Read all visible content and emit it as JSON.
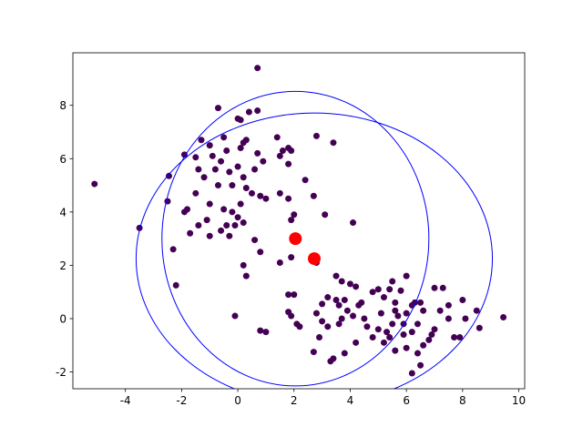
{
  "chart_data": {
    "type": "scatter",
    "xlim": [
      -5.87,
      10.21
    ],
    "ylim": [
      -2.63,
      9.97
    ],
    "xticks": [
      -4,
      -2,
      0,
      2,
      4,
      6,
      8,
      10
    ],
    "yticks": [
      -2,
      0,
      2,
      4,
      6,
      8
    ],
    "points": {
      "color": "#440154",
      "x": [
        -5.1,
        -3.5,
        -2.45,
        -2.5,
        -2.3,
        -2.2,
        -1.9,
        -1.8,
        -1.9,
        -1.7,
        -1.5,
        -1.4,
        -1.3,
        -1.2,
        -1.5,
        -1.4,
        -1.1,
        -1,
        -0.9,
        -0.8,
        -0.7,
        -0.6,
        -0.7,
        -0.5,
        -0.4,
        -0.3,
        -0.5,
        -0.4,
        -0.3,
        -0.6,
        -1.0,
        -0.2,
        0,
        0.1,
        0.2,
        0.3,
        0.1,
        0.0,
        0.2,
        -0.1,
        0.0,
        0.1,
        0.3,
        0.4,
        0.7,
        0.7,
        0.6,
        0.5,
        0.8,
        0.7,
        0.9,
        0.2,
        -0.2,
        -1.0,
        0.2,
        0.3,
        0.6,
        0.8,
        1.0,
        1.4,
        1.5,
        1.6,
        1.8,
        1.9,
        1.8,
        1.5,
        1.8,
        2.4,
        2.8,
        3.4,
        2.7,
        1.9,
        2.0,
        3.1,
        4.1,
        1.5,
        1.9,
        1.8,
        2.0,
        1.8,
        1.9,
        2.1,
        2.2,
        0.8,
        1.0,
        -0.1,
        2.8,
        3.5,
        3.7,
        4.0,
        3.2,
        3.5,
        3.6,
        3.8,
        4.2,
        3.0,
        2.8,
        3.0,
        3.2,
        3.6,
        3.7,
        3.9,
        4.1,
        4.3,
        4.5,
        4.8,
        5.0,
        5.2,
        5.4,
        5.6,
        5.8,
        6.0,
        5.5,
        5.6,
        5.7,
        5.9,
        6.0,
        6.2,
        6.3,
        6.5,
        6.6,
        6.4,
        6.2,
        5.9,
        5.5,
        5.3,
        5.2,
        5.4,
        5.0,
        4.8,
        4.6,
        4.2,
        3.8,
        3.4,
        3.3,
        2.7,
        2.9,
        6.0,
        6.2,
        6.5,
        6.4,
        6.6,
        6.8,
        7.0,
        7.3,
        7.2,
        7.5,
        7.7,
        7.9,
        8.1,
        8.0,
        7.5,
        7.0,
        8.5,
        8.6,
        9.45,
        6.9,
        5.1,
        4.4,
        5.6
      ],
      "y": [
        5.05,
        3.4,
        5.35,
        4.4,
        2.6,
        1.25,
        6.15,
        4.1,
        4.0,
        3.2,
        6.05,
        5.6,
        6.7,
        5.3,
        4.7,
        3.5,
        3.7,
        6.5,
        6.1,
        5.6,
        5.0,
        5.9,
        7.9,
        6.8,
        6.3,
        5.5,
        4.1,
        3.5,
        3.1,
        3.3,
        3.1,
        4.0,
        5.7,
        6.4,
        5.3,
        4.9,
        4.3,
        3.8,
        3.6,
        3.5,
        7.5,
        7.45,
        6.7,
        7.75,
        7.8,
        9.4,
        5.6,
        4.7,
        4.6,
        6.2,
        5.9,
        6.6,
        5.0,
        4.3,
        2.0,
        1.6,
        2.95,
        2.5,
        4.5,
        6.8,
        6.1,
        6.3,
        6.4,
        6.3,
        5.8,
        4.7,
        4.5,
        5.2,
        6.85,
        6.6,
        4.6,
        3.7,
        3.9,
        3.9,
        3.6,
        2.1,
        2.3,
        0.9,
        0.9,
        0.25,
        0.1,
        -0.2,
        -0.3,
        -0.45,
        -0.5,
        0.1,
        2.1,
        1.6,
        1.4,
        1.3,
        0.8,
        0.7,
        0.5,
        0.7,
        1.2,
        0.55,
        0.2,
        -0.1,
        -0.3,
        -0.2,
        0.0,
        0.3,
        0.1,
        0.5,
        0.0,
        1.0,
        1.1,
        0.8,
        1.1,
        0.6,
        1.05,
        1.6,
        1.4,
        0.3,
        0.1,
        -0.2,
        0.2,
        0.5,
        0.6,
        0.6,
        0.3,
        -0.2,
        -0.5,
        -0.6,
        -0.2,
        -0.5,
        -0.9,
        -0.7,
        -0.4,
        -0.7,
        -0.3,
        -0.9,
        -1.3,
        -1.5,
        -1.6,
        -1.25,
        -0.7,
        -1.1,
        -2.05,
        -1.75,
        -1.3,
        -1.0,
        -0.8,
        1.15,
        1.15,
        0.3,
        0.5,
        -0.7,
        -0.7,
        0.0,
        0.7,
        0.0,
        -0.4,
        0.3,
        -0.35,
        0.05,
        -0.6,
        0.2,
        0.6,
        -1.2
      ]
    },
    "centers": {
      "color": "#ff0000",
      "x": [
        2.05,
        2.72
      ],
      "y": [
        3.0,
        2.25
      ]
    },
    "circles": [
      {
        "color": "#0000ff",
        "cx": 2.05,
        "cy": 3.0,
        "width": 9.5,
        "height": 11.05
      },
      {
        "color": "#0000ff",
        "cx": 2.72,
        "cy": 2.25,
        "width": 12.68,
        "height": 10.92
      }
    ]
  }
}
